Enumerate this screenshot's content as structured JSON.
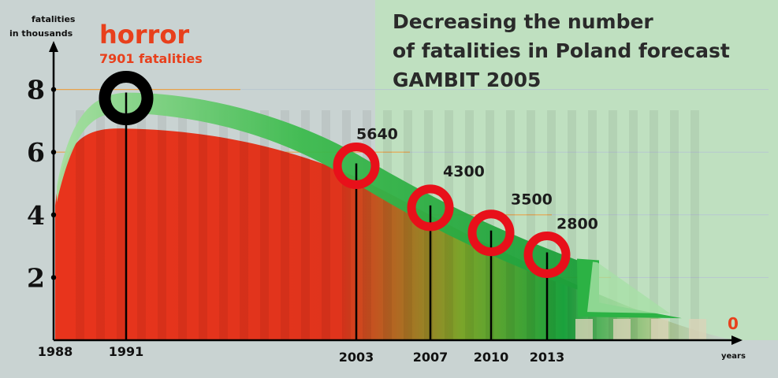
{
  "chart_data": {
    "type": "area",
    "title_lines": [
      "Decreasing the number",
      "of fatalities in Poland forecast",
      "GAMBIT 2005"
    ],
    "ylabel_lines": [
      "fatalities",
      "in thousands"
    ],
    "xlabel": "years",
    "y_ticks": [
      "8",
      "6",
      "4",
      "2"
    ],
    "x_ticks": [
      {
        "value": 1988,
        "label": "1988"
      },
      {
        "value": 1991,
        "label": "1991"
      },
      {
        "value": 2003,
        "label": "2003"
      },
      {
        "value": 2007,
        "label": "2007"
      },
      {
        "value": 2010,
        "label": "2010"
      },
      {
        "value": 2013,
        "label": "2013"
      }
    ],
    "annotation": {
      "year": 1991,
      "headline": "horror",
      "text": "7901 fatalities",
      "value": 7.901
    },
    "points": [
      {
        "year": 2003,
        "value": 5.64,
        "label": "5640"
      },
      {
        "year": 2007,
        "value": 4.3,
        "label": "4300"
      },
      {
        "year": 2010,
        "value": 3.5,
        "label": "3500"
      },
      {
        "year": 2013,
        "value": 2.8,
        "label": "2800"
      }
    ],
    "end_label": "0",
    "ylim": [
      0,
      9
    ],
    "colors": {
      "background": "#c9d3d2",
      "panel": "#bfe0c0",
      "arrow": "#1aa13c",
      "area_red": "#e8341c",
      "marker_red": "#e8101a",
      "marker_black": "#000000",
      "gridline": "#e8a24a"
    }
  }
}
